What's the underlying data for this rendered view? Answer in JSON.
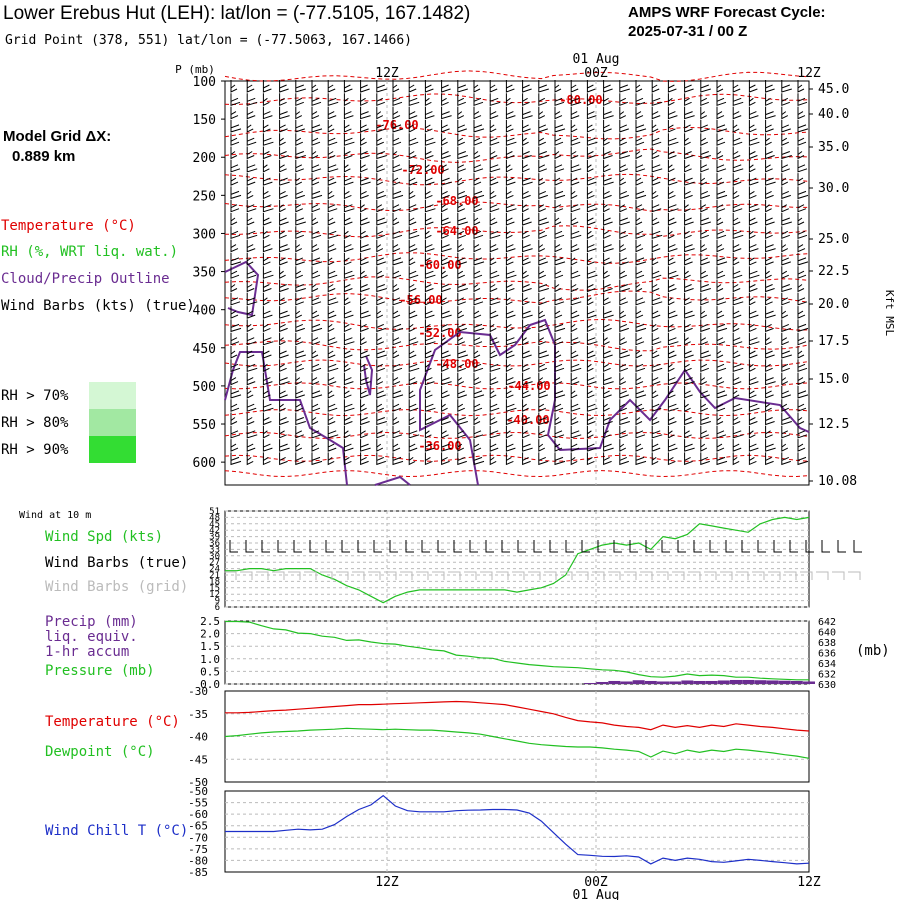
{
  "header": {
    "title": "Lower Erebus Hut (LEH):  lat/lon = (-77.5105, 167.1482)",
    "subtitle": "Grid Point (378, 551) lat/lon = (-77.5063, 167.1466)",
    "cycle_line1": "AMPS WRF Forecast Cycle:",
    "cycle_line2": "2025-07-31 / 00  Z"
  },
  "model_grid": {
    "line1": "Model Grid ΔX:",
    "line2": "0.889 km"
  },
  "legend": {
    "temperature": "Temperature (°C)",
    "rh": "RH (%, WRT liq. wat.)",
    "cloud": "Cloud/Precip Outline",
    "wind": "Wind Barbs (kts) (true)",
    "rh70": "RH > 70%",
    "rh80": "RH > 80%",
    "rh90": "RH > 90%"
  },
  "colors": {
    "temperature": "#e00000",
    "dewpoint": "#22c022",
    "cloud": "#6a2c91",
    "windchill": "#1d2fc8",
    "rh70": "#d4f7d4",
    "rh80": "#a2e8a2",
    "rh90": "#33dd33",
    "grid": "#bbbbbb"
  },
  "time_axis": {
    "top_labels": [
      "12Z",
      "00Z",
      "12Z"
    ],
    "date_label": "01 Aug",
    "bottom_labels": [
      "12Z",
      "00Z",
      "12Z"
    ]
  },
  "chart_data": [
    {
      "type": "line",
      "panel": "upper-air cross-section",
      "ylabel": "P (mb)",
      "right_label": "Kft MSL",
      "y_ticks": [
        "100",
        "150",
        "200",
        "250",
        "300",
        "350",
        "400",
        "450",
        "500",
        "550",
        "600"
      ],
      "right_ticks": [
        "45.0",
        "40.0",
        "35.0",
        "30.0",
        "25.0",
        "22.5",
        "20.0",
        "17.5",
        "15.0",
        "12.5",
        "10.08"
      ],
      "isotherm_labels": [
        "-80.00",
        "-76.00",
        "-72.00",
        "-68.00",
        "-64.00",
        "-60.00",
        "-56.00",
        "-52.00",
        "-48.00",
        "-44.00",
        "-40.00",
        "-36.00"
      ]
    },
    {
      "type": "line",
      "panel": "wind at 10 m",
      "title": "Wind at 10 m",
      "series_labels": {
        "speed": "Wind Spd (kts)",
        "true": "Wind Barbs (true)",
        "grid": "Wind Barbs (grid)"
      },
      "y_ticks": [
        "51",
        "48",
        "45",
        "42",
        "39",
        "36",
        "33",
        "30",
        "27",
        "24",
        "21",
        "18",
        "15",
        "12",
        "9",
        "6"
      ],
      "ylim": [
        6,
        51
      ],
      "x": [
        0,
        1,
        2,
        3,
        4,
        5,
        6,
        7,
        8,
        9,
        10,
        11,
        12,
        13,
        14,
        15,
        16,
        17,
        18,
        19,
        20,
        21,
        22,
        23,
        24,
        25,
        26,
        27,
        28,
        29,
        30,
        31,
        32,
        33,
        34,
        35,
        36,
        37,
        38,
        39,
        40,
        41,
        42,
        43,
        44,
        45,
        46,
        47,
        48
      ],
      "values": [
        23,
        23,
        24,
        24,
        23,
        24,
        24,
        24,
        21,
        19,
        16,
        14,
        11,
        8,
        11,
        13,
        14,
        14,
        14,
        14,
        14,
        14,
        14,
        14,
        13,
        14,
        15,
        17,
        21,
        31,
        33,
        35,
        36,
        35,
        36,
        33,
        39,
        38,
        40,
        45,
        44,
        43,
        42,
        41,
        45,
        47,
        48,
        47,
        48
      ]
    },
    {
      "type": "bar",
      "panel": "precipitation and pressure",
      "series_labels": {
        "precip": "Precip (mm)",
        "liq": "liq. equiv.",
        "accum": "1-hr accum",
        "pressure": "Pressure (mb)"
      },
      "left_ticks": [
        "2.5",
        "2.0",
        "1.5",
        "1.0",
        "0.5",
        "0.0"
      ],
      "right_ticks": [
        "642",
        "640",
        "638",
        "636",
        "634",
        "632",
        "630"
      ],
      "right_unit": "(mb)",
      "precip_values": [
        0,
        0,
        0,
        0,
        0,
        0,
        0,
        0,
        0,
        0,
        0,
        0,
        0,
        0,
        0,
        0,
        0,
        0,
        0,
        0,
        0,
        0,
        0,
        0,
        0,
        0,
        0,
        0,
        0,
        0,
        0.04,
        0.08,
        0.12,
        0.1,
        0.15,
        0.12,
        0.1,
        0.1,
        0.14,
        0.12,
        0.12,
        0.14,
        0.16,
        0.16,
        0.15,
        0.14,
        0.13,
        0.12,
        0.1
      ],
      "pressure_values": [
        641.9,
        641.9,
        641.8,
        641.1,
        640.5,
        640.3,
        639.7,
        639.6,
        639.1,
        638.9,
        638.3,
        638.4,
        638.0,
        637.7,
        637.6,
        637.2,
        636.9,
        636.5,
        636.3,
        635.5,
        635.3,
        635.0,
        634.9,
        634.3,
        634.0,
        633.7,
        633.5,
        633.3,
        633.2,
        633.1,
        632.9,
        632.7,
        632.6,
        632.3,
        631.8,
        631.4,
        631.3,
        631.5,
        631.9,
        631.6,
        631.7,
        631.6,
        631.3,
        631.3,
        631.1,
        631.0,
        630.9,
        630.8,
        630.8
      ]
    },
    {
      "type": "line",
      "panel": "temperature and dewpoint",
      "series_labels": {
        "temperature": "Temperature (°C)",
        "dewpoint": "Dewpoint (°C)"
      },
      "y_ticks": [
        "-30",
        "-35",
        "-40",
        "-45",
        "-50"
      ],
      "ylim": [
        -50,
        -30
      ],
      "temperature": [
        -34.8,
        -34.8,
        -34.7,
        -34.5,
        -34.3,
        -34.2,
        -34.0,
        -33.8,
        -33.6,
        -33.4,
        -33.2,
        -33.0,
        -33.0,
        -32.9,
        -32.8,
        -32.7,
        -32.6,
        -32.5,
        -32.4,
        -32.3,
        -32.4,
        -32.6,
        -32.8,
        -33.0,
        -33.5,
        -34.0,
        -34.5,
        -35.0,
        -35.8,
        -36.5,
        -36.8,
        -37.0,
        -37.5,
        -37.8,
        -38.0,
        -38.5,
        -37.5,
        -38.0,
        -37.6,
        -38.0,
        -37.5,
        -37.8,
        -37.2,
        -37.5,
        -37.8,
        -38.0,
        -38.3,
        -38.6,
        -38.8
      ],
      "dewpoint": [
        -40.0,
        -39.8,
        -39.5,
        -39.2,
        -39.0,
        -38.9,
        -38.8,
        -38.6,
        -38.5,
        -38.4,
        -38.2,
        -38.3,
        -38.4,
        -38.5,
        -38.4,
        -38.5,
        -38.6,
        -38.6,
        -38.8,
        -39.0,
        -39.2,
        -39.5,
        -40.0,
        -40.5,
        -41.0,
        -41.5,
        -41.8,
        -42.0,
        -42.2,
        -42.3,
        -42.3,
        -42.5,
        -42.8,
        -43.0,
        -43.3,
        -44.5,
        -43.2,
        -43.8,
        -43.0,
        -43.5,
        -43.0,
        -43.3,
        -42.8,
        -43.0,
        -43.3,
        -43.6,
        -44.0,
        -44.3,
        -44.8
      ]
    },
    {
      "type": "line",
      "panel": "wind chill",
      "series_labels": {
        "windchill": "Wind Chill T (°C)"
      },
      "y_ticks": [
        "-50",
        "-55",
        "-60",
        "-65",
        "-70",
        "-75",
        "-80",
        "-85"
      ],
      "ylim": [
        -85,
        -50
      ],
      "values": [
        -67.5,
        -67.5,
        -67.5,
        -67.5,
        -67.5,
        -67.0,
        -66.5,
        -66.8,
        -66.5,
        -64.5,
        -61.0,
        -58.0,
        -56.0,
        -52.0,
        -56.5,
        -58.5,
        -59.0,
        -59.0,
        -59.0,
        -58.5,
        -58.3,
        -58.2,
        -58.0,
        -58.0,
        -58.2,
        -59.5,
        -63.0,
        -68.0,
        -73.0,
        -77.5,
        -77.8,
        -78.2,
        -78.3,
        -78.0,
        -78.5,
        -81.5,
        -79.0,
        -80.0,
        -79.0,
        -79.5,
        -80.5,
        -80.8,
        -80.2,
        -79.5,
        -80.0,
        -80.5,
        -81.0,
        -81.5,
        -81.2
      ]
    }
  ]
}
